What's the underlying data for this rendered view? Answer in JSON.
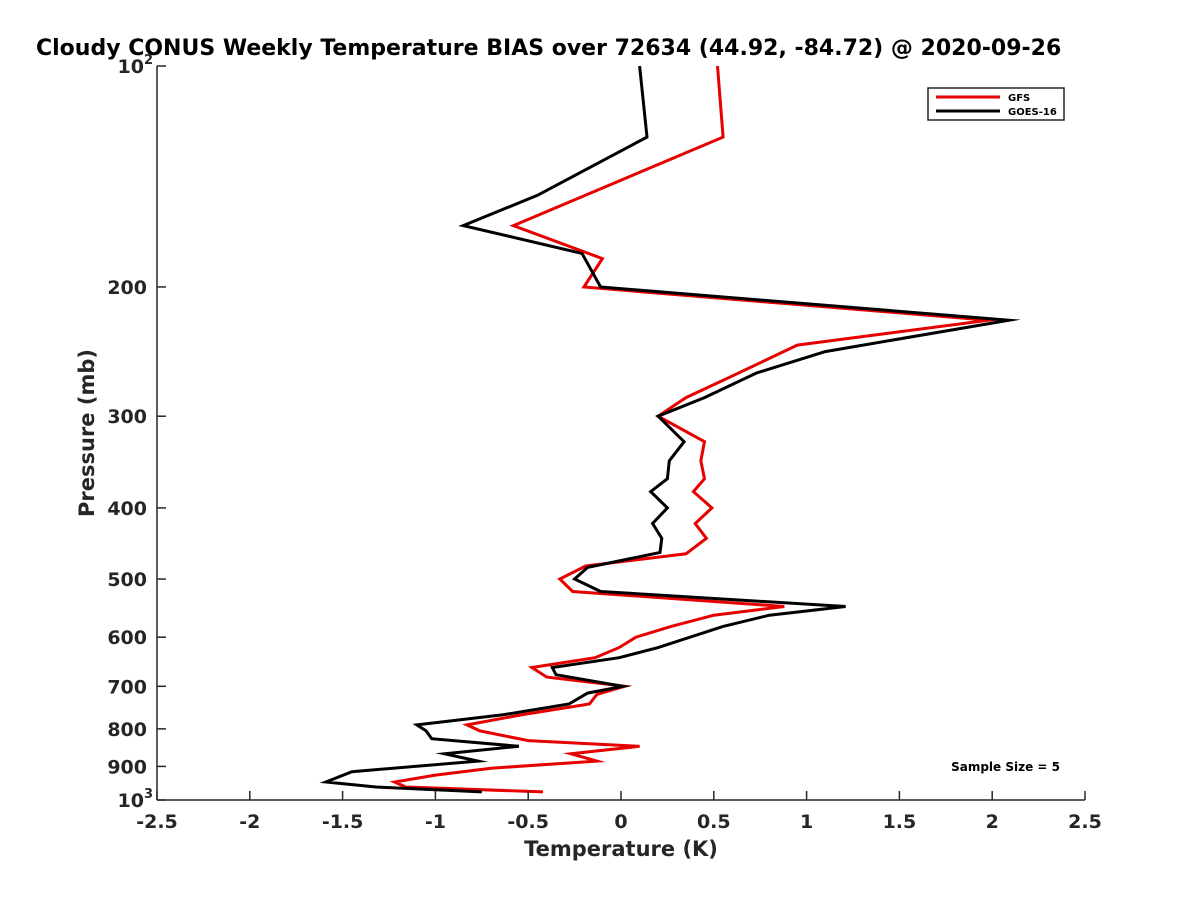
{
  "chart_data": {
    "type": "line",
    "title": "Cloudy CONUS Weekly Temperature BIAS over 72634 (44.92, -84.72) @ 2020-09-26",
    "xlabel": "Temperature (K)",
    "ylabel": "Pressure (mb)",
    "xlim": [
      -2.5,
      2.5
    ],
    "ylim": [
      100,
      1000
    ],
    "yscale": "log",
    "yreversed": true,
    "grid": false,
    "legend_position": "top-right",
    "x_ticks": [
      {
        "value": -2.5,
        "label": "-2.5"
      },
      {
        "value": -2,
        "label": "-2"
      },
      {
        "value": -1.5,
        "label": "-1.5"
      },
      {
        "value": -1,
        "label": "-1"
      },
      {
        "value": -0.5,
        "label": "-0.5"
      },
      {
        "value": 0,
        "label": "0"
      },
      {
        "value": 0.5,
        "label": "0.5"
      },
      {
        "value": 1,
        "label": "1"
      },
      {
        "value": 1.5,
        "label": "1.5"
      },
      {
        "value": 2,
        "label": "2"
      },
      {
        "value": 2.5,
        "label": "2.5"
      }
    ],
    "y_ticks": [
      {
        "value": 100,
        "label": "10",
        "exp": "2"
      },
      {
        "value": 200,
        "label": "200"
      },
      {
        "value": 300,
        "label": "300"
      },
      {
        "value": 400,
        "label": "400"
      },
      {
        "value": 500,
        "label": "500"
      },
      {
        "value": 600,
        "label": "600"
      },
      {
        "value": 700,
        "label": "700"
      },
      {
        "value": 800,
        "label": "800"
      },
      {
        "value": 900,
        "label": "900"
      },
      {
        "value": 1000,
        "label": "10",
        "exp": "3"
      }
    ],
    "annotation": "Sample Size = 5",
    "series": [
      {
        "name": "GFS",
        "color": "#e60000",
        "points": [
          [
            0.52,
            100
          ],
          [
            0.55,
            125
          ],
          [
            -0.58,
            165
          ],
          [
            -0.1,
            183
          ],
          [
            -0.2,
            200
          ],
          [
            1.98,
            222
          ],
          [
            0.95,
            240
          ],
          [
            0.62,
            263
          ],
          [
            0.35,
            283
          ],
          [
            0.2,
            300
          ],
          [
            0.45,
            325
          ],
          [
            0.43,
            345
          ],
          [
            0.45,
            365
          ],
          [
            0.39,
            380
          ],
          [
            0.49,
            400
          ],
          [
            0.4,
            420
          ],
          [
            0.46,
            440
          ],
          [
            0.35,
            462
          ],
          [
            -0.19,
            480
          ],
          [
            -0.33,
            500
          ],
          [
            -0.26,
            520
          ],
          [
            0.88,
            545
          ],
          [
            0.5,
            560
          ],
          [
            0.27,
            580
          ],
          [
            0.08,
            600
          ],
          [
            -0.01,
            620
          ],
          [
            -0.14,
            640
          ],
          [
            -0.48,
            660
          ],
          [
            -0.4,
            680
          ],
          [
            0.02,
            700
          ],
          [
            -0.13,
            718
          ],
          [
            -0.17,
            740
          ],
          [
            -0.53,
            765
          ],
          [
            -0.83,
            790
          ],
          [
            -0.76,
            805
          ],
          [
            -0.5,
            830
          ],
          [
            0.1,
            845
          ],
          [
            -0.27,
            865
          ],
          [
            -0.13,
            885
          ],
          [
            -0.7,
            905
          ],
          [
            -1.0,
            925
          ],
          [
            -1.22,
            945
          ],
          [
            -1.16,
            960
          ],
          [
            -0.42,
            975
          ]
        ]
      },
      {
        "name": "GOES-16",
        "color": "#000000",
        "points": [
          [
            0.1,
            100
          ],
          [
            0.14,
            125
          ],
          [
            -0.45,
            150
          ],
          [
            -0.85,
            165
          ],
          [
            -0.21,
            180
          ],
          [
            -0.11,
            200
          ],
          [
            2.09,
            222
          ],
          [
            1.1,
            245
          ],
          [
            0.73,
            262
          ],
          [
            0.45,
            283
          ],
          [
            0.2,
            300
          ],
          [
            0.34,
            325
          ],
          [
            0.26,
            345
          ],
          [
            0.25,
            365
          ],
          [
            0.16,
            380
          ],
          [
            0.25,
            400
          ],
          [
            0.17,
            420
          ],
          [
            0.22,
            440
          ],
          [
            0.21,
            460
          ],
          [
            -0.18,
            482
          ],
          [
            -0.25,
            500
          ],
          [
            -0.11,
            520
          ],
          [
            1.21,
            545
          ],
          [
            0.8,
            560
          ],
          [
            0.55,
            580
          ],
          [
            0.2,
            620
          ],
          [
            -0.01,
            640
          ],
          [
            -0.37,
            660
          ],
          [
            -0.35,
            675
          ],
          [
            0.01,
            700
          ],
          [
            -0.18,
            715
          ],
          [
            -0.28,
            740
          ],
          [
            -0.63,
            765
          ],
          [
            -1.1,
            790
          ],
          [
            -1.05,
            805
          ],
          [
            -1.02,
            825
          ],
          [
            -0.55,
            845
          ],
          [
            -0.95,
            865
          ],
          [
            -0.77,
            885
          ],
          [
            -1.45,
            915
          ],
          [
            -1.59,
            945
          ],
          [
            -1.32,
            960
          ],
          [
            -0.75,
            975
          ]
        ]
      }
    ]
  }
}
